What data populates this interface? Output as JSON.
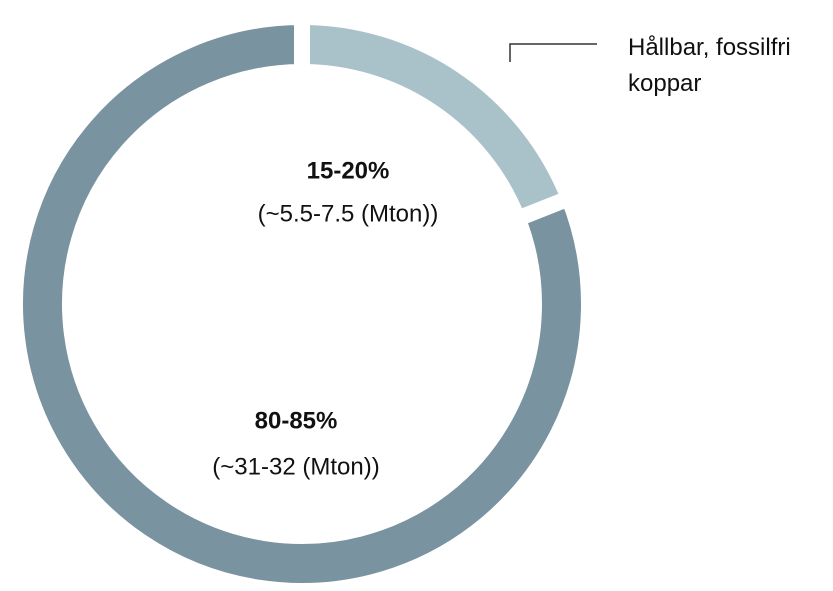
{
  "chart_data": {
    "type": "pie",
    "categories": [
      "Hållbar, fossilfri koppar",
      null
    ],
    "values": [
      19,
      81
    ],
    "colors": [
      "#a9c1c8",
      "#7993a0"
    ],
    "annotations": [
      {
        "text": "15-20%",
        "sub": "(~5.5-7.5 (Mton))"
      },
      {
        "text": "80-85%",
        "sub": "(~31-32 (Mton))"
      }
    ]
  }
}
